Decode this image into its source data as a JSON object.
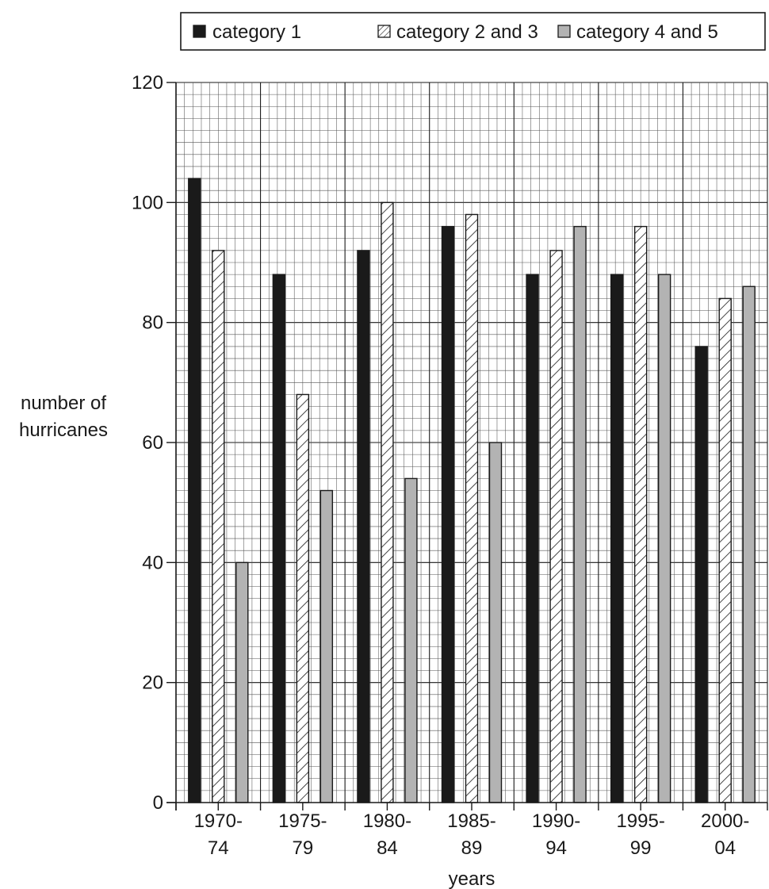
{
  "chart_data": {
    "type": "bar",
    "xlabel": "years",
    "ylabel_lines": [
      "number of",
      "hurricanes"
    ],
    "ylim": [
      0,
      120
    ],
    "y_ticks": [
      0,
      20,
      40,
      60,
      80,
      100,
      120
    ],
    "grid": true,
    "legend_position": "top",
    "categories": [
      [
        "1970-",
        "74"
      ],
      [
        "1975-",
        "79"
      ],
      [
        "1980-",
        "84"
      ],
      [
        "1985-",
        "89"
      ],
      [
        "1990-",
        "94"
      ],
      [
        "1995-",
        "99"
      ],
      [
        "2000-",
        "04"
      ]
    ],
    "series": [
      {
        "name": "category 1",
        "style": "solid-black",
        "values": [
          104,
          88,
          92,
          96,
          88,
          88,
          76
        ]
      },
      {
        "name": "category 2 and 3",
        "style": "hatched",
        "values": [
          92,
          68,
          100,
          98,
          92,
          96,
          84
        ]
      },
      {
        "name": "category 4 and 5",
        "style": "solid-grey",
        "values": [
          40,
          52,
          54,
          60,
          96,
          88,
          86
        ]
      }
    ],
    "colors": {
      "black": "#1a1a1a",
      "grey": "#b3b3b3",
      "hatch": "#1a1a1a"
    }
  }
}
